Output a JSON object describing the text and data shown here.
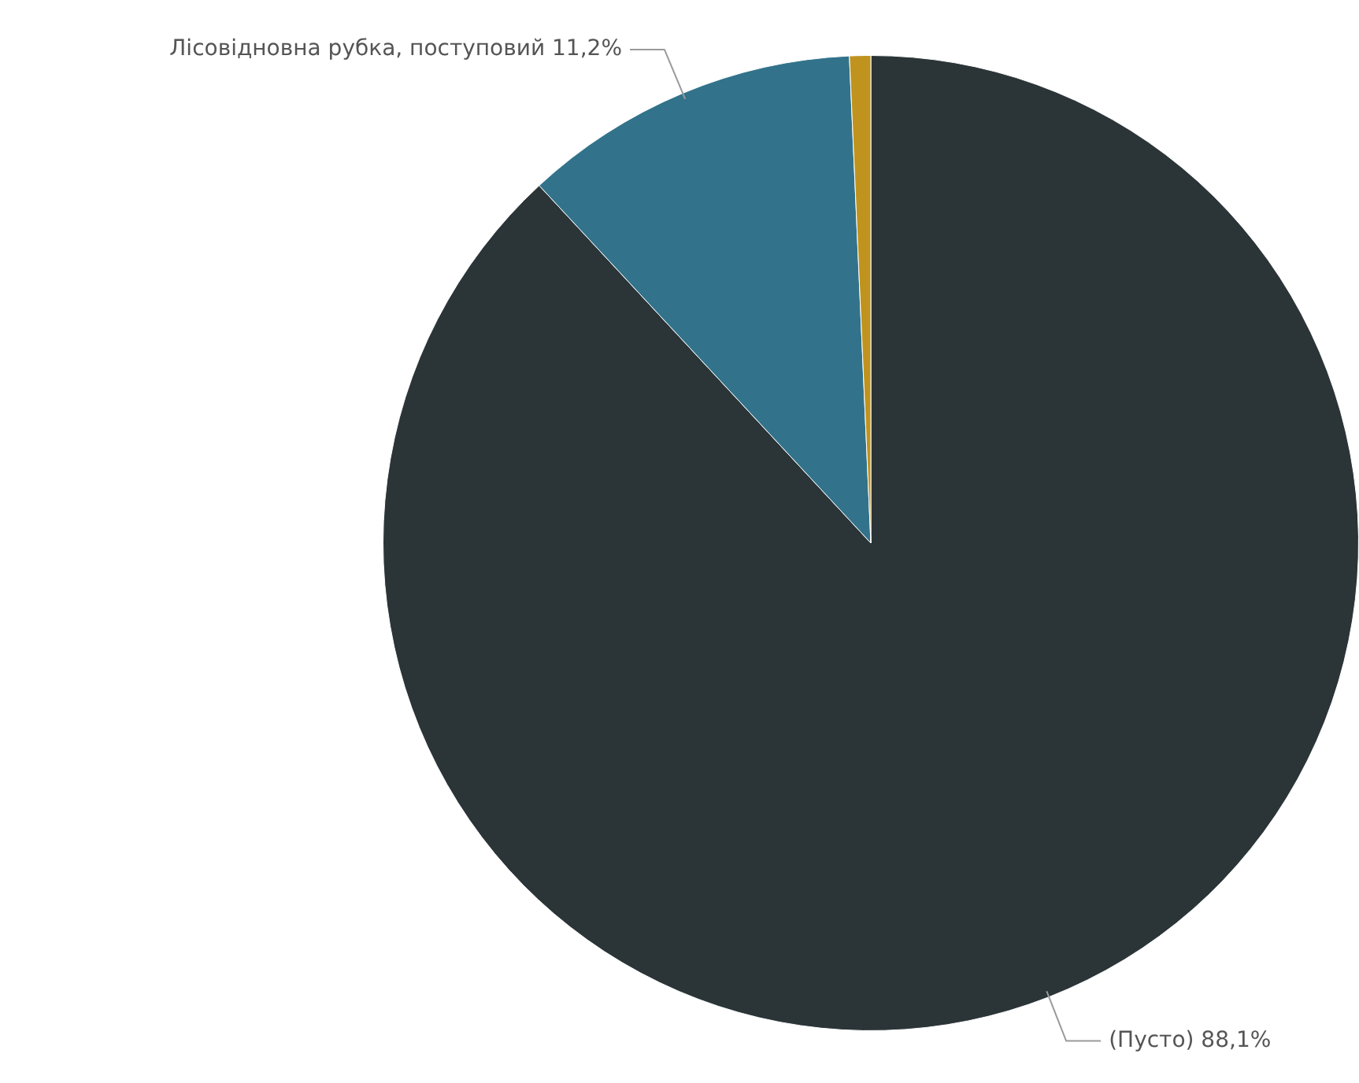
{
  "chart_data": {
    "type": "pie",
    "categories": [
      "(Пусто)",
      "Лісовідновна рубка, поступовий",
      null
    ],
    "values": [
      88.1,
      11.2,
      0.7
    ],
    "colors": [
      "#2b3538",
      "#32738b",
      "#c0931f"
    ],
    "value_labels": [
      "88,1%",
      "11,2%",
      null
    ],
    "legend": false
  }
}
